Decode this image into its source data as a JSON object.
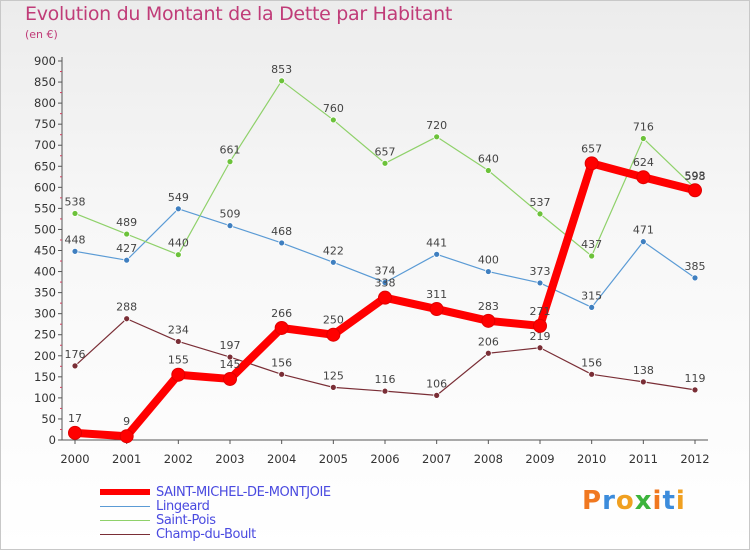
{
  "header": {
    "title": "Evolution du Montant de la Dette par Habitant",
    "subtitle": "(en €)"
  },
  "brand": {
    "text": "Proxiti",
    "colors": [
      "#f07820",
      "#3c8cdc",
      "#f0a020",
      "#3cb43c",
      "#f07820",
      "#3c8cdc",
      "#f0a020"
    ]
  },
  "chart_data": {
    "type": "line",
    "title": "Evolution du Montant de la Dette par Habitant",
    "subtitle": "(en €)",
    "x": [
      2000,
      2001,
      2002,
      2003,
      2004,
      2005,
      2006,
      2007,
      2008,
      2009,
      2010,
      2011,
      2012
    ],
    "ylim": [
      0,
      900
    ],
    "yticks": [
      0,
      50,
      100,
      150,
      200,
      250,
      300,
      350,
      400,
      450,
      500,
      550,
      600,
      650,
      700,
      750,
      800,
      850,
      900
    ],
    "grid": false,
    "legend_position": "bottom-left",
    "series": [
      {
        "name": "SAINT-MICHEL-DE-MONTJOIE",
        "color": "#ff0000",
        "values": [
          17,
          9,
          155,
          145,
          266,
          250,
          338,
          311,
          283,
          271,
          657,
          624,
          593
        ]
      },
      {
        "name": "Lingeard",
        "color": "#5b9bd5",
        "values": [
          448,
          427,
          549,
          509,
          468,
          422,
          374,
          441,
          400,
          373,
          315,
          471,
          385
        ]
      },
      {
        "name": "Saint-Pois",
        "color": "#8fd16a",
        "values": [
          538,
          489,
          440,
          661,
          853,
          760,
          657,
          720,
          640,
          537,
          437,
          716,
          598
        ]
      },
      {
        "name": "Champ-du-Boult",
        "color": "#7a2e36",
        "values": [
          176,
          288,
          234,
          197,
          156,
          125,
          116,
          106,
          206,
          219,
          156,
          138,
          119
        ]
      }
    ]
  }
}
